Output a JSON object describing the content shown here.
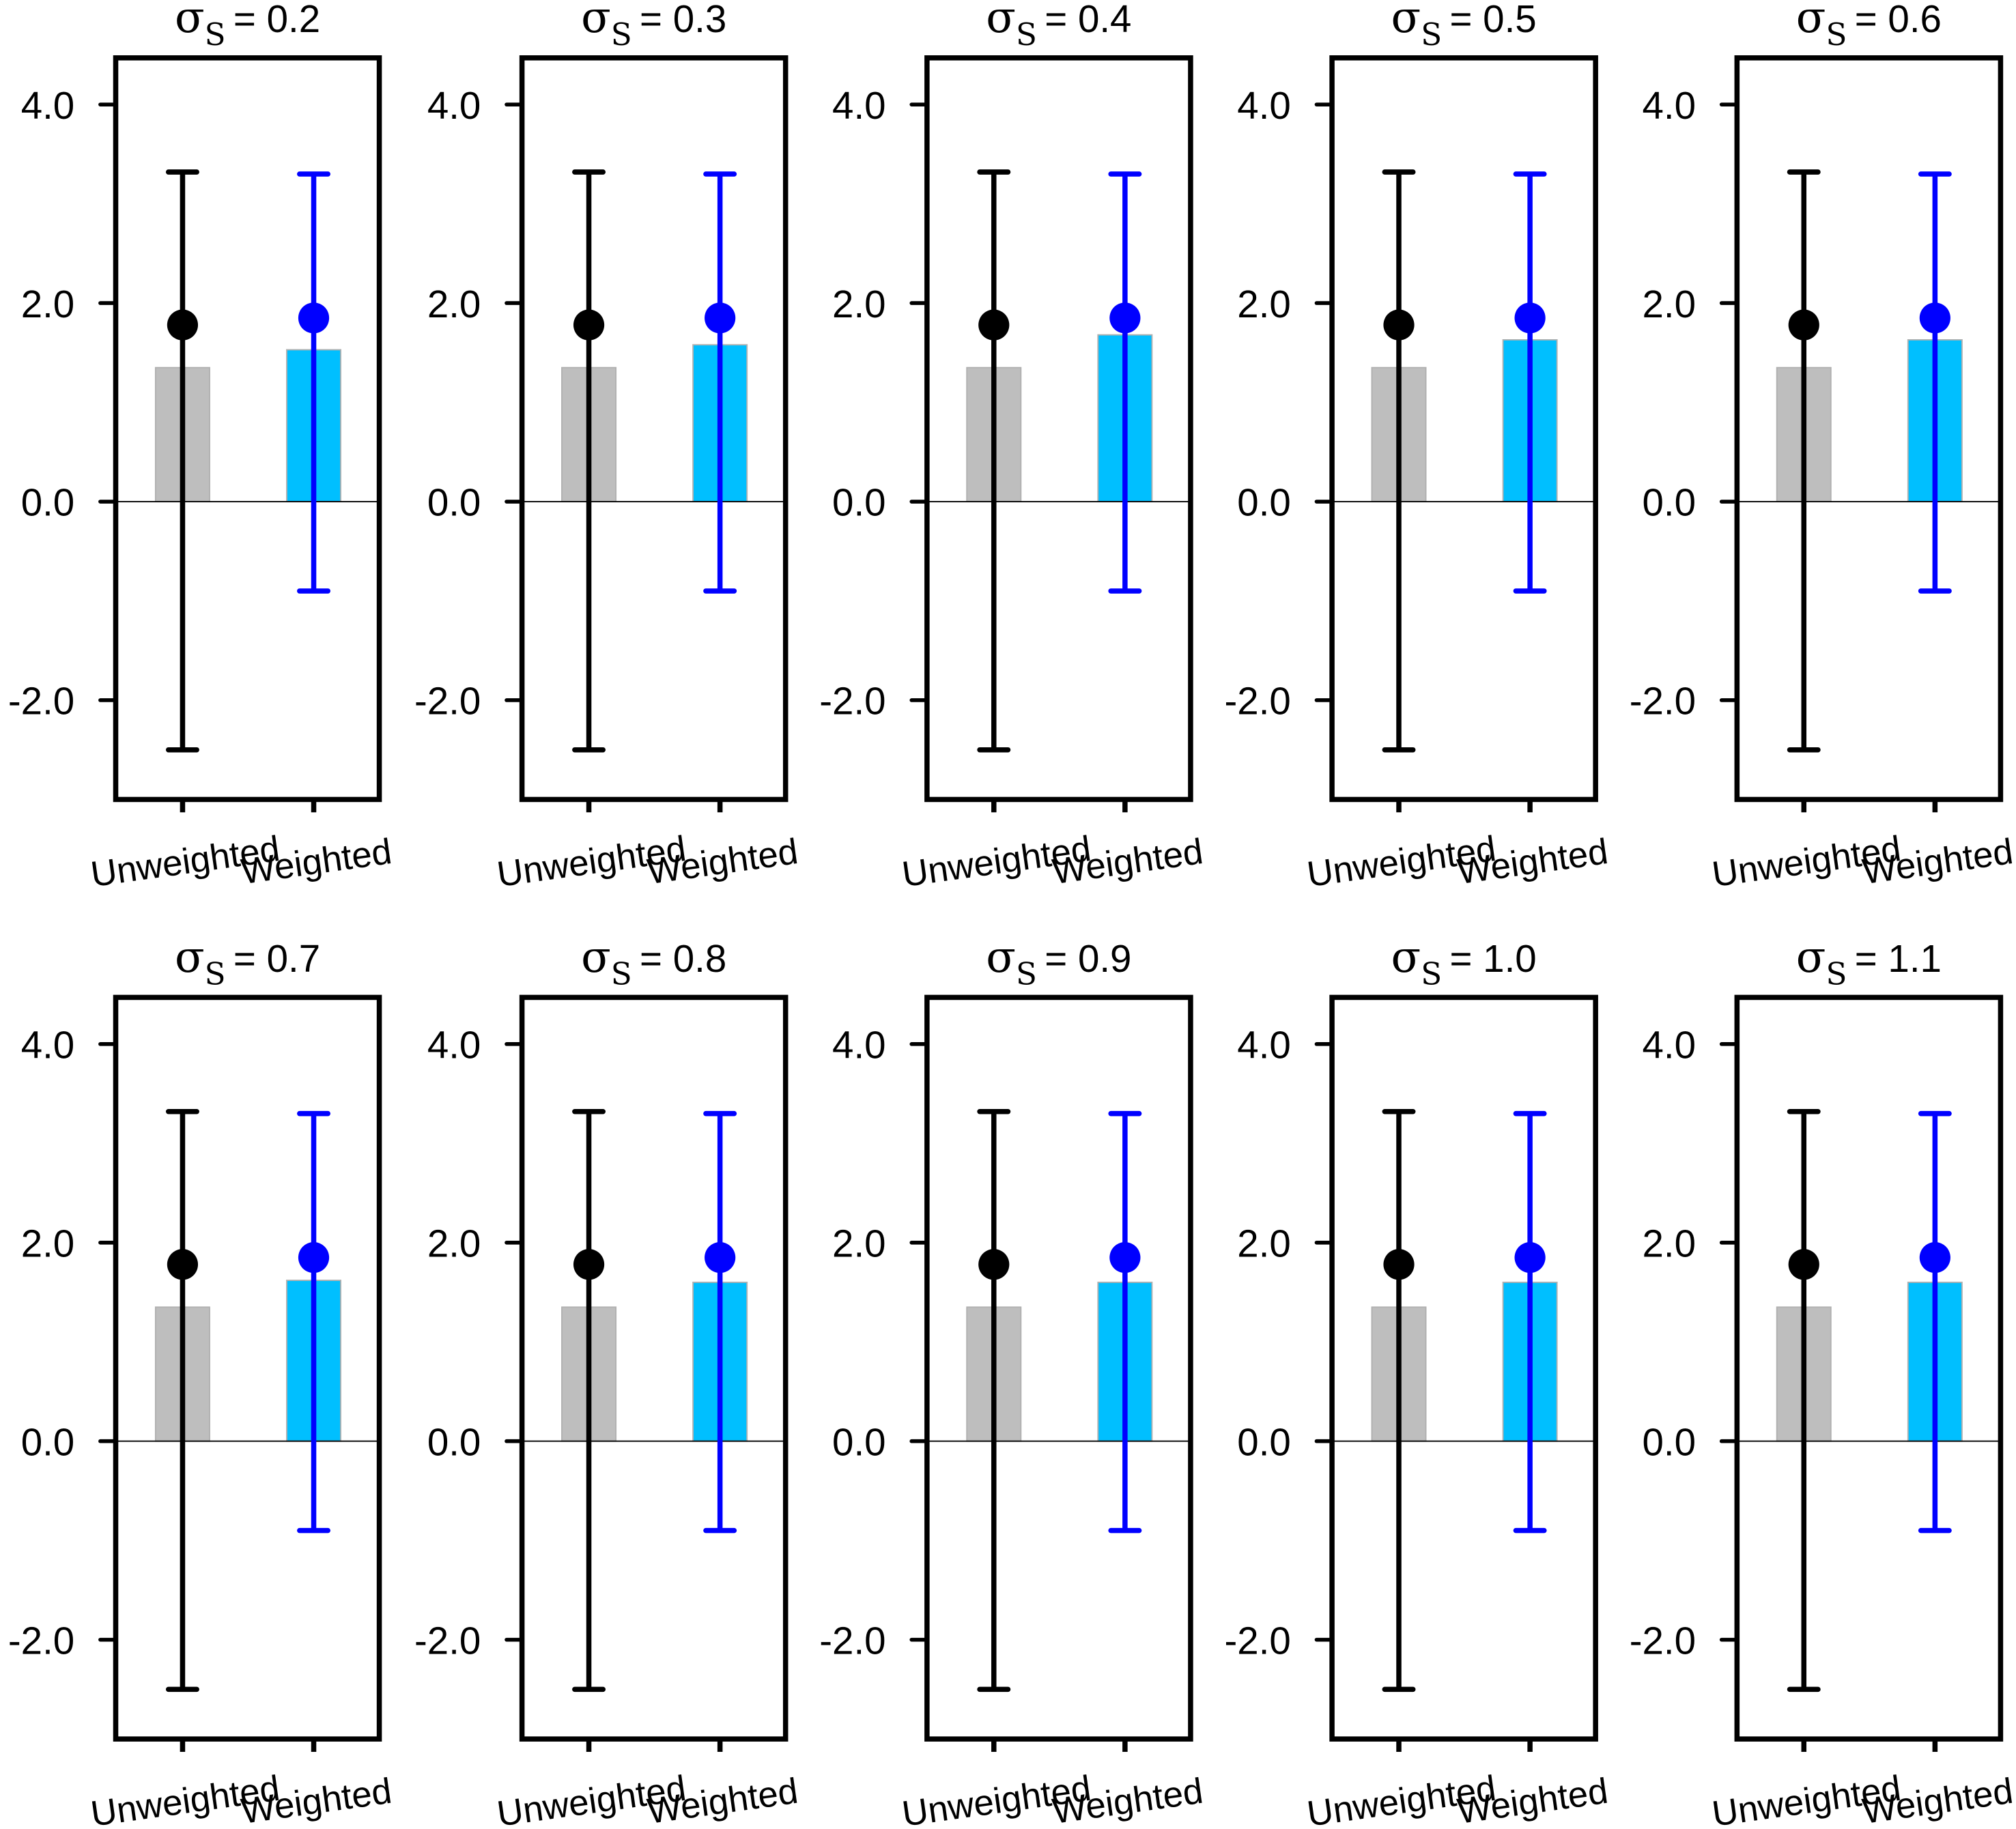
{
  "colors": {
    "unweighted_bar": "#bebebe",
    "weighted_bar": "#00bfff",
    "unweighted_point": "#000000",
    "weighted_point": "#0000ff",
    "frame": "#000000"
  },
  "chart_data": [
    {
      "type": "bar",
      "title_symbol": "σ",
      "title_subscript": "S",
      "title_value": "= 0.2",
      "categories": [
        "Unweighted",
        "Weighted"
      ],
      "bar_values": [
        1.35,
        1.53
      ],
      "point_values": [
        1.78,
        1.85
      ],
      "error_low": [
        -2.5,
        -0.9
      ],
      "error_high": [
        3.32,
        3.3
      ],
      "yticks": [
        "4.0",
        "2.0",
        "0.0",
        "-2.0"
      ],
      "ytick_values": [
        4,
        2,
        0,
        -2
      ],
      "ylim": [
        -3,
        4.47
      ]
    },
    {
      "type": "bar",
      "title_symbol": "σ",
      "title_subscript": "S",
      "title_value": "= 0.3",
      "categories": [
        "Unweighted",
        "Weighted"
      ],
      "bar_values": [
        1.35,
        1.58
      ],
      "point_values": [
        1.78,
        1.85
      ],
      "error_low": [
        -2.5,
        -0.9
      ],
      "error_high": [
        3.32,
        3.3
      ],
      "yticks": [
        "4.0",
        "2.0",
        "0.0",
        "-2.0"
      ],
      "ytick_values": [
        4,
        2,
        0,
        -2
      ],
      "ylim": [
        -3,
        4.47
      ]
    },
    {
      "type": "bar",
      "title_symbol": "σ",
      "title_subscript": "S",
      "title_value": "= 0.4",
      "categories": [
        "Unweighted",
        "Weighted"
      ],
      "bar_values": [
        1.35,
        1.68
      ],
      "point_values": [
        1.78,
        1.85
      ],
      "error_low": [
        -2.5,
        -0.9
      ],
      "error_high": [
        3.32,
        3.3
      ],
      "yticks": [
        "4.0",
        "2.0",
        "0.0",
        "-2.0"
      ],
      "ytick_values": [
        4,
        2,
        0,
        -2
      ],
      "ylim": [
        -3,
        4.47
      ]
    },
    {
      "type": "bar",
      "title_symbol": "σ",
      "title_subscript": "S",
      "title_value": "= 0.5",
      "categories": [
        "Unweighted",
        "Weighted"
      ],
      "bar_values": [
        1.35,
        1.63
      ],
      "point_values": [
        1.78,
        1.85
      ],
      "error_low": [
        -2.5,
        -0.9
      ],
      "error_high": [
        3.32,
        3.3
      ],
      "yticks": [
        "4.0",
        "2.0",
        "0.0",
        "-2.0"
      ],
      "ytick_values": [
        4,
        2,
        0,
        -2
      ],
      "ylim": [
        -3,
        4.47
      ]
    },
    {
      "type": "bar",
      "title_symbol": "σ",
      "title_subscript": "S",
      "title_value": "= 0.6",
      "categories": [
        "Unweighted",
        "Weighted"
      ],
      "bar_values": [
        1.35,
        1.63
      ],
      "point_values": [
        1.78,
        1.85
      ],
      "error_low": [
        -2.5,
        -0.9
      ],
      "error_high": [
        3.32,
        3.3
      ],
      "yticks": [
        "4.0",
        "2.0",
        "0.0",
        "-2.0"
      ],
      "ytick_values": [
        4,
        2,
        0,
        -2
      ],
      "ylim": [
        -3,
        4.47
      ]
    },
    {
      "type": "bar",
      "title_symbol": "σ",
      "title_subscript": "S",
      "title_value": "= 0.7",
      "categories": [
        "Unweighted",
        "Weighted"
      ],
      "bar_values": [
        1.35,
        1.62
      ],
      "point_values": [
        1.78,
        1.85
      ],
      "error_low": [
        -2.5,
        -0.9
      ],
      "error_high": [
        3.32,
        3.3
      ],
      "yticks": [
        "4.0",
        "2.0",
        "0.0",
        "-2.0"
      ],
      "ytick_values": [
        4,
        2,
        0,
        -2
      ],
      "ylim": [
        -3,
        4.47
      ]
    },
    {
      "type": "bar",
      "title_symbol": "σ",
      "title_subscript": "S",
      "title_value": "= 0.8",
      "categories": [
        "Unweighted",
        "Weighted"
      ],
      "bar_values": [
        1.35,
        1.6
      ],
      "point_values": [
        1.78,
        1.85
      ],
      "error_low": [
        -2.5,
        -0.9
      ],
      "error_high": [
        3.32,
        3.3
      ],
      "yticks": [
        "4.0",
        "2.0",
        "0.0",
        "-2.0"
      ],
      "ytick_values": [
        4,
        2,
        0,
        -2
      ],
      "ylim": [
        -3,
        4.47
      ]
    },
    {
      "type": "bar",
      "title_symbol": "σ",
      "title_subscript": "S",
      "title_value": "= 0.9",
      "categories": [
        "Unweighted",
        "Weighted"
      ],
      "bar_values": [
        1.35,
        1.6
      ],
      "point_values": [
        1.78,
        1.85
      ],
      "error_low": [
        -2.5,
        -0.9
      ],
      "error_high": [
        3.32,
        3.3
      ],
      "yticks": [
        "4.0",
        "2.0",
        "0.0",
        "-2.0"
      ],
      "ytick_values": [
        4,
        2,
        0,
        -2
      ],
      "ylim": [
        -3,
        4.47
      ]
    },
    {
      "type": "bar",
      "title_symbol": "σ",
      "title_subscript": "S",
      "title_value": "= 1.0",
      "categories": [
        "Unweighted",
        "Weighted"
      ],
      "bar_values": [
        1.35,
        1.6
      ],
      "point_values": [
        1.78,
        1.85
      ],
      "error_low": [
        -2.5,
        -0.9
      ],
      "error_high": [
        3.32,
        3.3
      ],
      "yticks": [
        "4.0",
        "2.0",
        "0.0",
        "-2.0"
      ],
      "ytick_values": [
        4,
        2,
        0,
        -2
      ],
      "ylim": [
        -3,
        4.47
      ]
    },
    {
      "type": "bar",
      "title_symbol": "σ",
      "title_subscript": "S",
      "title_value": "= 1.1",
      "categories": [
        "Unweighted",
        "Weighted"
      ],
      "bar_values": [
        1.35,
        1.6
      ],
      "point_values": [
        1.78,
        1.85
      ],
      "error_low": [
        -2.5,
        -0.9
      ],
      "error_high": [
        3.32,
        3.3
      ],
      "yticks": [
        "4.0",
        "2.0",
        "0.0",
        "-2.0"
      ],
      "ytick_values": [
        4,
        2,
        0,
        -2
      ],
      "ylim": [
        -3,
        4.47
      ]
    }
  ]
}
